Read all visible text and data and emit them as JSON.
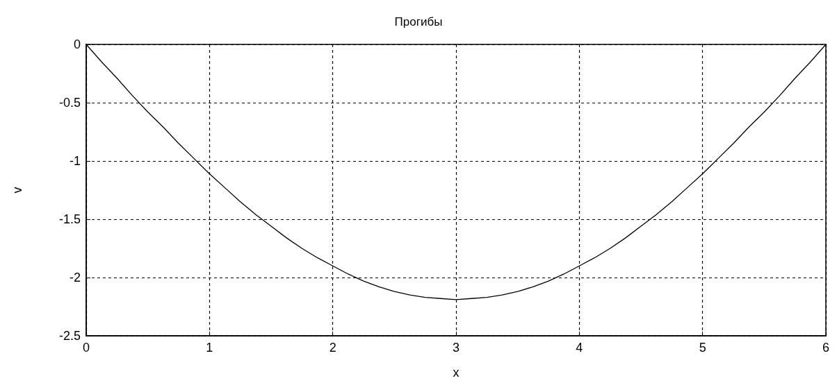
{
  "chart_data": {
    "type": "line",
    "title": "Прогибы",
    "xlabel": "x",
    "ylabel": "v",
    "x": [
      0,
      0.125,
      0.25,
      0.375,
      0.5,
      0.625,
      0.75,
      0.875,
      1,
      1.125,
      1.25,
      1.375,
      1.5,
      1.625,
      1.75,
      1.875,
      2,
      2.125,
      2.25,
      2.375,
      2.5,
      2.625,
      2.75,
      2.875,
      3,
      3.125,
      3.25,
      3.375,
      3.5,
      3.625,
      3.75,
      3.875,
      4,
      4.125,
      4.25,
      4.375,
      4.5,
      4.625,
      4.75,
      4.875,
      5,
      5.125,
      5.25,
      5.375,
      5.5,
      5.625,
      5.75,
      5.875,
      6
    ],
    "series": [
      {
        "color": "#000000",
        "values": [
          0,
          -0.15,
          -0.29,
          -0.44,
          -0.58,
          -0.71,
          -0.85,
          -0.98,
          -1.11,
          -1.23,
          -1.35,
          -1.46,
          -1.56,
          -1.66,
          -1.75,
          -1.83,
          -1.9,
          -1.97,
          -2.03,
          -2.08,
          -2.12,
          -2.15,
          -2.17,
          -2.18,
          -2.19,
          -2.18,
          -2.17,
          -2.15,
          -2.12,
          -2.08,
          -2.03,
          -1.97,
          -1.9,
          -1.83,
          -1.75,
          -1.66,
          -1.56,
          -1.46,
          -1.35,
          -1.23,
          -1.11,
          -0.98,
          -0.85,
          -0.71,
          -0.58,
          -0.44,
          -0.29,
          -0.15,
          0
        ]
      }
    ],
    "xlim": [
      0,
      6
    ],
    "xticks": [
      0,
      1,
      2,
      3,
      4,
      5,
      6
    ],
    "ylim": [
      -2.5,
      0
    ],
    "yticks": [
      -2.5,
      -2,
      -1.5,
      -1,
      -0.5,
      0
    ],
    "grid": true,
    "marker": "none",
    "line_style": "solid"
  }
}
